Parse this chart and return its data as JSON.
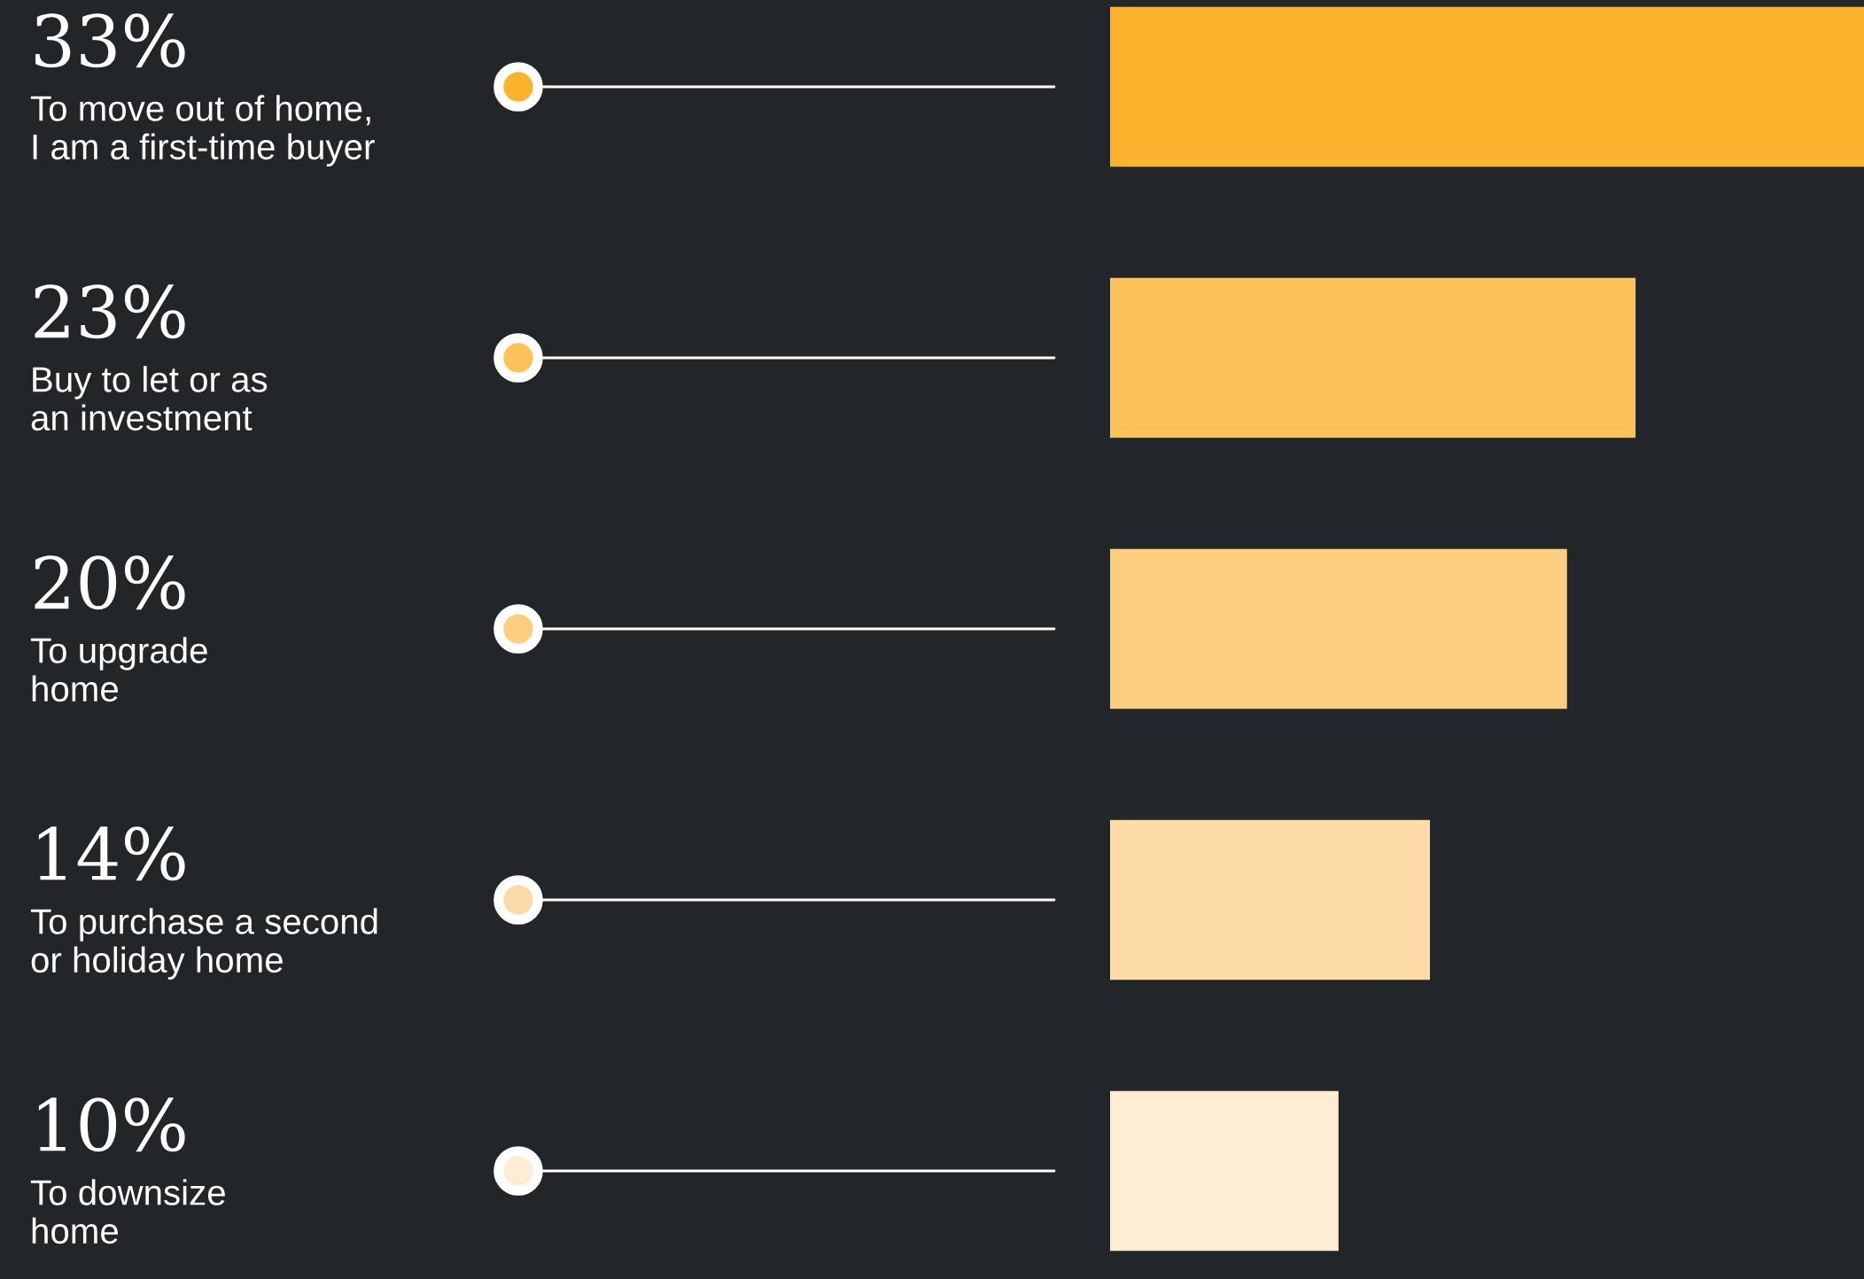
{
  "chart_data": {
    "type": "bar",
    "orientation": "horizontal",
    "categories": [
      "To move out of home,\nI am a first-time buyer",
      "Buy to let or as\nan investment",
      "To upgrade\nhome",
      "To purchase a second\nor holiday home",
      "To downsize\nhome"
    ],
    "values": [
      33,
      23,
      20,
      14,
      10
    ],
    "value_labels": [
      "33%",
      "23%",
      "20%",
      "14%",
      "10%"
    ],
    "colors": [
      "#fbb32e",
      "#fcc35a",
      "#fdcd80",
      "#fddba6",
      "#feecd3"
    ],
    "xlim": [
      0,
      33
    ]
  }
}
